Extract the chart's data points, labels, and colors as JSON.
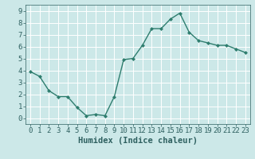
{
  "x": [
    0,
    1,
    2,
    3,
    4,
    5,
    6,
    7,
    8,
    9,
    10,
    11,
    12,
    13,
    14,
    15,
    16,
    17,
    18,
    19,
    20,
    21,
    22,
    23
  ],
  "y": [
    3.9,
    3.5,
    2.3,
    1.8,
    1.8,
    0.9,
    0.2,
    0.3,
    0.2,
    1.8,
    4.9,
    5.0,
    6.1,
    7.5,
    7.5,
    8.3,
    8.8,
    7.2,
    6.5,
    6.3,
    6.1,
    6.1,
    5.8,
    5.5
  ],
  "line_color": "#2e7d6e",
  "marker": "D",
  "marker_size": 2.0,
  "linewidth": 1.0,
  "bg_color": "#cce8e8",
  "grid_color": "#ffffff",
  "xlabel": "Humidex (Indice chaleur)",
  "xlabel_fontsize": 7.5,
  "tick_fontsize": 6.5,
  "xlim": [
    -0.5,
    23.5
  ],
  "ylim": [
    -0.5,
    9.5
  ],
  "yticks": [
    0,
    1,
    2,
    3,
    4,
    5,
    6,
    7,
    8,
    9
  ],
  "xticks": [
    0,
    1,
    2,
    3,
    4,
    5,
    6,
    7,
    8,
    9,
    10,
    11,
    12,
    13,
    14,
    15,
    16,
    17,
    18,
    19,
    20,
    21,
    22,
    23
  ]
}
